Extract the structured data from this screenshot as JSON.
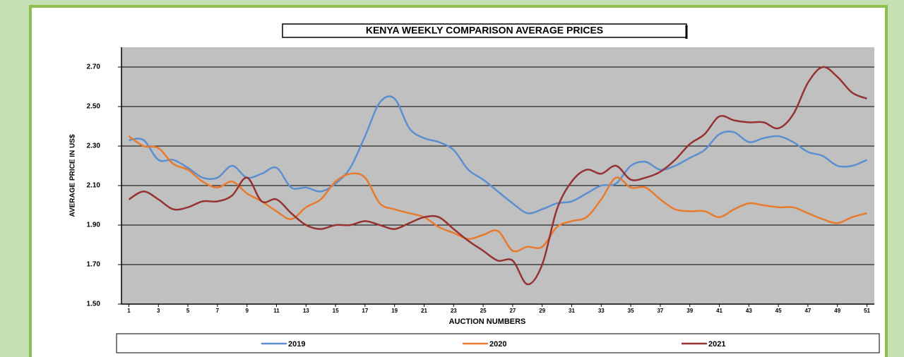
{
  "chart_data": {
    "type": "line",
    "title": "KENYA WEEKLY COMPARISON AVERAGE PRICES",
    "x_label": "AUCTION NUMBERS",
    "y_label": "AVERAGE PRICE IN US$",
    "x": [
      1,
      2,
      3,
      4,
      5,
      6,
      7,
      8,
      9,
      10,
      11,
      12,
      13,
      14,
      15,
      16,
      17,
      18,
      19,
      20,
      21,
      22,
      23,
      24,
      25,
      26,
      27,
      28,
      29,
      30,
      31,
      32,
      33,
      34,
      35,
      36,
      37,
      38,
      39,
      40,
      41,
      42,
      43,
      44,
      45,
      46,
      47,
      48,
      49,
      50,
      51
    ],
    "xlim": [
      0.5,
      51.5
    ],
    "xticks": [
      1,
      3,
      5,
      7,
      9,
      11,
      13,
      15,
      17,
      19,
      21,
      23,
      25,
      27,
      29,
      31,
      33,
      35,
      37,
      39,
      41,
      43,
      45,
      47,
      49,
      51
    ],
    "ylim": [
      1.5,
      2.8
    ],
    "yticks": [
      {
        "value": 1.5,
        "label": "1.50"
      },
      {
        "value": 1.7,
        "label": "1.70"
      },
      {
        "value": 1.9,
        "label": "1.90"
      },
      {
        "value": 2.1,
        "label": "2.10"
      },
      {
        "value": 2.3,
        "label": "2.30"
      },
      {
        "value": 2.5,
        "label": "2.50"
      },
      {
        "value": 2.7,
        "label": "2.70"
      }
    ],
    "grid": true,
    "legend": "bottom",
    "series": [
      {
        "name": "2019",
        "color": "#5b8fd0",
        "values": [
          2.33,
          2.33,
          2.23,
          2.23,
          2.19,
          2.14,
          2.14,
          2.2,
          2.14,
          2.16,
          2.19,
          2.09,
          2.09,
          2.07,
          2.11,
          2.19,
          2.35,
          2.52,
          2.54,
          2.39,
          2.34,
          2.32,
          2.28,
          2.18,
          2.13,
          2.07,
          2.01,
          1.96,
          1.98,
          2.01,
          2.02,
          2.06,
          2.1,
          2.11,
          2.2,
          2.22,
          2.18,
          2.2,
          2.24,
          2.28,
          2.36,
          2.37,
          2.32,
          2.34,
          2.35,
          2.32,
          2.27,
          2.25,
          2.2,
          2.2,
          2.23
        ]
      },
      {
        "name": "2020",
        "color": "#e87a2e",
        "values": [
          2.35,
          2.3,
          2.29,
          2.21,
          2.18,
          2.12,
          2.09,
          2.12,
          2.06,
          2.02,
          1.97,
          1.93,
          1.99,
          2.03,
          2.12,
          2.16,
          2.14,
          2.01,
          1.98,
          1.96,
          1.94,
          1.89,
          1.86,
          1.83,
          1.85,
          1.87,
          1.77,
          1.79,
          1.79,
          1.89,
          1.92,
          1.94,
          2.03,
          2.14,
          2.09,
          2.09,
          2.03,
          1.98,
          1.97,
          1.97,
          1.94,
          1.98,
          2.01,
          2.0,
          1.99,
          1.99,
          1.96,
          1.93,
          1.91,
          1.94,
          1.96
        ]
      },
      {
        "name": "2021",
        "color": "#963232",
        "values": [
          2.03,
          2.07,
          2.03,
          1.98,
          1.99,
          2.02,
          2.02,
          2.05,
          2.14,
          2.02,
          2.03,
          1.96,
          1.9,
          1.88,
          1.9,
          1.9,
          1.92,
          1.9,
          1.88,
          1.91,
          1.94,
          1.94,
          1.88,
          1.82,
          1.77,
          1.72,
          1.72,
          1.6,
          1.7,
          1.98,
          2.12,
          2.18,
          2.16,
          2.2,
          2.13,
          2.14,
          2.17,
          2.23,
          2.31,
          2.36,
          2.45,
          2.43,
          2.42,
          2.42,
          2.39,
          2.46,
          2.62,
          2.7,
          2.65,
          2.57,
          2.54
        ]
      }
    ]
  }
}
